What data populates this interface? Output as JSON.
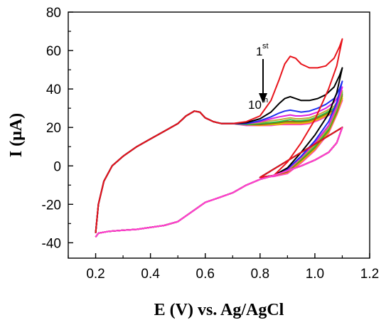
{
  "chart_data": {
    "type": "line",
    "title": "",
    "xlabel": "E (V) vs. Ag/AgCl",
    "ylabel": "I (μA)",
    "xlim": [
      0.1,
      1.2
    ],
    "ylim": [
      -48,
      80
    ],
    "xticks": [
      0.2,
      0.4,
      0.6,
      0.8,
      1.0,
      1.2
    ],
    "xtick_labels": [
      "0.2",
      "0.4",
      "0.6",
      "0.8",
      "1.0",
      "1.2"
    ],
    "yticks": [
      -40,
      -20,
      0,
      20,
      40,
      60,
      80
    ],
    "ytick_labels": [
      "-40",
      "-20",
      "0",
      "20",
      "40",
      "60",
      "80"
    ],
    "grid": false,
    "legend": "none",
    "annotations": {
      "first": {
        "main": "1",
        "sup": "st"
      },
      "tenth": {
        "main": "10",
        "sup": "th"
      }
    },
    "lower_branch": {
      "x": [
        0.2,
        0.21,
        0.25,
        0.3,
        0.35,
        0.4,
        0.45,
        0.5,
        0.55,
        0.6,
        0.65,
        0.7,
        0.75,
        0.8,
        0.85,
        0.9,
        0.95,
        1.0,
        1.05,
        1.08,
        1.1
      ],
      "y": [
        -37,
        -35,
        -34,
        -33.5,
        -33,
        -32,
        -31,
        -29,
        -24,
        -19,
        -16.5,
        -14,
        -10,
        -7,
        -5,
        -2.5,
        0,
        3,
        7,
        12,
        20
      ]
    },
    "series": [
      {
        "color": "#e8141b",
        "upper": {
          "x": [
            0.2,
            0.21,
            0.23,
            0.26,
            0.3,
            0.35,
            0.4,
            0.45,
            0.5,
            0.53,
            0.56,
            0.58,
            0.6,
            0.63,
            0.66,
            0.7,
            0.75,
            0.8,
            0.84,
            0.87,
            0.89,
            0.91,
            0.93,
            0.95,
            0.98,
            1.01,
            1.04,
            1.07,
            1.09,
            1.1
          ],
          "y": [
            -35,
            -20,
            -8,
            0,
            5,
            10,
            14,
            18,
            22,
            26,
            28.5,
            28,
            25,
            23,
            22,
            22,
            23,
            26,
            34,
            45,
            53,
            57,
            56,
            53,
            51,
            51,
            52,
            56,
            62,
            66
          ]
        },
        "return": {
          "x": [
            1.1,
            1.08,
            1.05,
            1.0,
            0.95,
            0.9,
            0.85,
            0.8
          ],
          "y": [
            66,
            52,
            40,
            24,
            12,
            2,
            -5,
            -6
          ]
        }
      },
      {
        "color": "#000000",
        "upper": {
          "x": [
            0.2,
            0.21,
            0.23,
            0.26,
            0.3,
            0.35,
            0.4,
            0.45,
            0.5,
            0.53,
            0.56,
            0.58,
            0.6,
            0.63,
            0.66,
            0.7,
            0.75,
            0.8,
            0.84,
            0.87,
            0.89,
            0.91,
            0.93,
            0.95,
            0.98,
            1.01,
            1.04,
            1.07,
            1.09,
            1.1
          ],
          "y": [
            -35,
            -20,
            -8,
            0,
            5,
            10,
            14,
            18,
            22,
            26,
            28.5,
            28,
            25,
            23,
            22,
            22,
            22.5,
            24.5,
            28,
            32.5,
            35,
            36,
            35,
            34,
            34,
            35,
            37,
            41,
            47,
            51
          ]
        },
        "return": {
          "x": [
            1.1,
            1.08,
            1.05,
            1.0,
            0.95,
            0.9,
            0.85,
            0.8
          ],
          "y": [
            51,
            38,
            27,
            16,
            7,
            -1,
            -5,
            -6
          ]
        }
      },
      {
        "color": "#1e2ff0",
        "upper": {
          "x": [
            0.2,
            0.21,
            0.23,
            0.26,
            0.3,
            0.35,
            0.4,
            0.45,
            0.5,
            0.53,
            0.56,
            0.58,
            0.6,
            0.63,
            0.66,
            0.7,
            0.75,
            0.8,
            0.84,
            0.87,
            0.89,
            0.91,
            0.93,
            0.95,
            0.98,
            1.01,
            1.04,
            1.07,
            1.09,
            1.1
          ],
          "y": [
            -35,
            -20,
            -8,
            0,
            5,
            10,
            14,
            18,
            22,
            26,
            28.5,
            28,
            25,
            23,
            22,
            22,
            22,
            23.5,
            25.5,
            27.5,
            28.5,
            29,
            28.5,
            28,
            28.5,
            30,
            32,
            35,
            40,
            44
          ]
        },
        "return": {
          "x": [
            1.1,
            1.08,
            1.05,
            1.0,
            0.95,
            0.9,
            0.85,
            0.8
          ],
          "y": [
            44,
            33,
            23,
            13,
            5,
            -1.5,
            -5,
            -6
          ]
        }
      },
      {
        "color": "#e020e0",
        "upper": {
          "x": [
            0.2,
            0.21,
            0.23,
            0.26,
            0.3,
            0.35,
            0.4,
            0.45,
            0.5,
            0.53,
            0.56,
            0.58,
            0.6,
            0.63,
            0.66,
            0.7,
            0.75,
            0.8,
            0.84,
            0.87,
            0.89,
            0.91,
            0.93,
            0.95,
            0.98,
            1.01,
            1.04,
            1.07,
            1.09,
            1.1
          ],
          "y": [
            -35,
            -20,
            -8,
            0,
            5,
            10,
            14,
            18,
            22,
            26,
            28.5,
            28,
            25,
            23,
            22,
            22,
            22,
            23,
            24.5,
            25.5,
            26,
            26.5,
            26,
            26,
            26.5,
            28,
            30,
            33,
            37,
            41
          ]
        },
        "return": {
          "x": [
            1.1,
            1.08,
            1.05,
            1.0,
            0.95,
            0.9,
            0.85,
            0.8
          ],
          "y": [
            41,
            31,
            21,
            12,
            4.5,
            -2,
            -5,
            -6
          ]
        }
      },
      {
        "color": "#c2a83a",
        "upper": {
          "x": [
            0.2,
            0.21,
            0.23,
            0.26,
            0.3,
            0.35,
            0.4,
            0.45,
            0.5,
            0.53,
            0.56,
            0.58,
            0.6,
            0.63,
            0.66,
            0.7,
            0.75,
            0.8,
            0.84,
            0.87,
            0.89,
            0.91,
            0.93,
            0.95,
            0.98,
            1.01,
            1.04,
            1.07,
            1.09,
            1.1
          ],
          "y": [
            -35,
            -20,
            -8,
            0,
            5,
            10,
            14,
            18,
            22,
            26,
            28.5,
            28,
            25,
            23,
            22,
            22,
            22,
            22.5,
            23.5,
            24,
            24.5,
            25,
            24.5,
            24.5,
            25,
            26.5,
            28.5,
            31,
            35,
            39
          ]
        },
        "return": {
          "x": [
            1.1,
            1.08,
            1.05,
            1.0,
            0.95,
            0.9,
            0.85,
            0.8
          ],
          "y": [
            39,
            30,
            20,
            11,
            4,
            -2.5,
            -5,
            -6
          ]
        }
      },
      {
        "color": "#2fbf3a",
        "upper": {
          "x": [
            0.2,
            0.21,
            0.23,
            0.26,
            0.3,
            0.35,
            0.4,
            0.45,
            0.5,
            0.53,
            0.56,
            0.58,
            0.6,
            0.63,
            0.66,
            0.7,
            0.75,
            0.8,
            0.84,
            0.87,
            0.89,
            0.91,
            0.93,
            0.95,
            0.98,
            1.01,
            1.04,
            1.07,
            1.09,
            1.1
          ],
          "y": [
            -35,
            -20,
            -8,
            0,
            5,
            10,
            14,
            18,
            22,
            26,
            28.5,
            28,
            25,
            23,
            22,
            22,
            21.5,
            22,
            22.5,
            23,
            23.5,
            24,
            23.5,
            23.5,
            24,
            25.5,
            27.5,
            30,
            34,
            38
          ]
        },
        "return": {
          "x": [
            1.1,
            1.08,
            1.05,
            1.0,
            0.95,
            0.9,
            0.85,
            0.8
          ],
          "y": [
            38,
            29,
            19,
            10,
            3.5,
            -2.5,
            -5,
            -6
          ]
        }
      },
      {
        "color": "#9a5a10",
        "upper": {
          "x": [
            0.2,
            0.21,
            0.23,
            0.26,
            0.3,
            0.35,
            0.4,
            0.45,
            0.5,
            0.53,
            0.56,
            0.58,
            0.6,
            0.63,
            0.66,
            0.7,
            0.75,
            0.8,
            0.84,
            0.87,
            0.89,
            0.91,
            0.93,
            0.95,
            0.98,
            1.01,
            1.04,
            1.07,
            1.09,
            1.1
          ],
          "y": [
            -35,
            -20,
            -8,
            0,
            5,
            10,
            14,
            18,
            22,
            26,
            28.5,
            28,
            25,
            23,
            22,
            22,
            21.5,
            21.5,
            22,
            22.5,
            23,
            23,
            23,
            23,
            23.5,
            25,
            27,
            29,
            33,
            37
          ]
        },
        "return": {
          "x": [
            1.1,
            1.08,
            1.05,
            1.0,
            0.95,
            0.9,
            0.85,
            0.8
          ],
          "y": [
            37,
            28,
            18.5,
            9.5,
            3,
            -3,
            -5,
            -6
          ]
        }
      },
      {
        "color": "#c8d400",
        "upper": {
          "x": [
            0.2,
            0.21,
            0.23,
            0.26,
            0.3,
            0.35,
            0.4,
            0.45,
            0.5,
            0.53,
            0.56,
            0.58,
            0.6,
            0.63,
            0.66,
            0.7,
            0.75,
            0.8,
            0.84,
            0.87,
            0.89,
            0.91,
            0.93,
            0.95,
            0.98,
            1.01,
            1.04,
            1.07,
            1.09,
            1.1
          ],
          "y": [
            -35,
            -20,
            -8,
            0,
            5,
            10,
            14,
            18,
            22,
            26,
            28.5,
            28,
            25,
            23,
            22,
            22,
            21.5,
            21.5,
            21.5,
            22,
            22.5,
            22.5,
            22.5,
            22.5,
            23,
            24.5,
            26.5,
            28.5,
            32,
            36
          ]
        },
        "return": {
          "x": [
            1.1,
            1.08,
            1.05,
            1.0,
            0.95,
            0.9,
            0.85,
            0.8
          ],
          "y": [
            36,
            27.5,
            18,
            9,
            2.5,
            -3,
            -5,
            -6
          ]
        }
      },
      {
        "color": "#ff8a1e",
        "upper": {
          "x": [
            0.2,
            0.21,
            0.23,
            0.26,
            0.3,
            0.35,
            0.4,
            0.45,
            0.5,
            0.53,
            0.56,
            0.58,
            0.6,
            0.63,
            0.66,
            0.7,
            0.75,
            0.8,
            0.84,
            0.87,
            0.89,
            0.91,
            0.93,
            0.95,
            0.98,
            1.01,
            1.04,
            1.07,
            1.09,
            1.1
          ],
          "y": [
            -35,
            -20,
            -8,
            0,
            5,
            10,
            14,
            18,
            22,
            26,
            28.5,
            28,
            25,
            23,
            22,
            22,
            21.5,
            21,
            21.5,
            21.5,
            22,
            22,
            22,
            22,
            22.5,
            24,
            26,
            28,
            31.5,
            35
          ]
        },
        "return": {
          "x": [
            1.1,
            1.08,
            1.05,
            1.0,
            0.95,
            0.9,
            0.85,
            0.8
          ],
          "y": [
            35,
            27,
            17.5,
            8.5,
            2,
            -3.5,
            -5,
            -6
          ]
        }
      },
      {
        "color": "#ff40d0",
        "upper": {
          "x": [
            0.2,
            0.21,
            0.23,
            0.26,
            0.3,
            0.35,
            0.4,
            0.45,
            0.5,
            0.53,
            0.56,
            0.58,
            0.6,
            0.63,
            0.66,
            0.7,
            0.75,
            0.8,
            0.84,
            0.87,
            0.89,
            0.91,
            0.93,
            0.95,
            0.98,
            1.01,
            1.04,
            1.07,
            1.09,
            1.1
          ],
          "y": [
            -35,
            -20,
            -8,
            0,
            5,
            10,
            14,
            18,
            22,
            26,
            28.5,
            28,
            25,
            23,
            22,
            22,
            21,
            21,
            21,
            21.5,
            21.5,
            21.5,
            21.5,
            21.5,
            22,
            23.5,
            25.5,
            27.5,
            31,
            34
          ]
        },
        "return": {
          "x": [
            1.1,
            1.08,
            1.05,
            1.0,
            0.95,
            0.9,
            0.85,
            0.8
          ],
          "y": [
            34,
            26.5,
            17,
            8,
            1.5,
            -4,
            -5.5,
            -6
          ]
        }
      }
    ]
  }
}
